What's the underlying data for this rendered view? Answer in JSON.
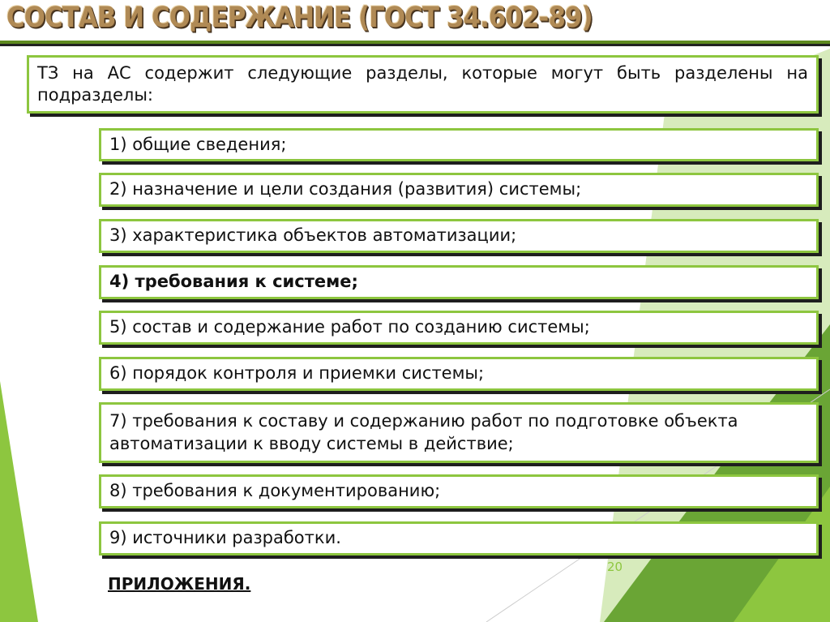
{
  "title": "СОСТАВ И СОДЕРЖАНИЕ (ГОСТ 34.602-89)",
  "intro": "ТЗ на АС содержит следующие разделы, которые могут быть разделены на подразделы:",
  "items": [
    {
      "label": "1) общие сведения;",
      "bold": false
    },
    {
      "label": "2) назначение и цели создания (развития) системы;",
      "bold": false
    },
    {
      "label": "3) характеристика объектов автоматизации;",
      "bold": false
    },
    {
      "label": "4) требования к системе;",
      "bold": true
    },
    {
      "label": "5) состав и содержание работ по созданию системы;",
      "bold": false
    },
    {
      "label": "6) порядок контроля и приемки системы;",
      "bold": false
    },
    {
      "label": "7) требования к составу и содержанию работ по подготовке объекта автоматизации к вводу системы в действие;",
      "bold": false
    },
    {
      "label": "8) требования к документированию;",
      "bold": false
    },
    {
      "label": "9) источники разработки.",
      "bold": false
    }
  ],
  "appendix": "ПРИЛОЖЕНИЯ.",
  "page_number": "20",
  "colors": {
    "accent": "#8dc63f",
    "accent_dark": "#6aa535",
    "title": "#b08a55"
  }
}
